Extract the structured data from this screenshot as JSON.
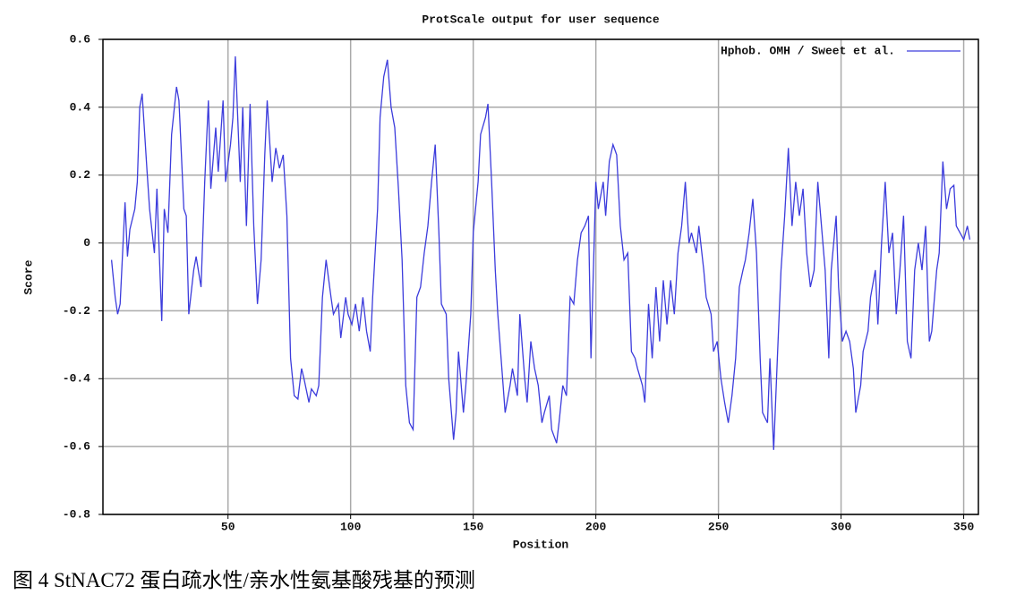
{
  "chart_data": {
    "type": "line",
    "title": "ProtScale output for user sequence",
    "xlabel": "Position",
    "ylabel": "Score",
    "caption": "图 4 StNAC72 蛋白疏水性/亲水性氨基酸残基的预测",
    "xlim": [
      -1,
      356
    ],
    "ylim": [
      -0.8,
      0.6
    ],
    "xticks": [
      50,
      100,
      150,
      200,
      250,
      300,
      350
    ],
    "yticks": [
      -0.8,
      -0.6,
      -0.4,
      -0.2,
      0,
      0.2,
      0.4,
      0.6
    ],
    "grid": true,
    "legend": "upper right",
    "x": [
      2.5,
      4,
      5,
      6,
      8,
      9,
      10,
      12,
      13,
      14,
      15,
      17,
      18,
      20,
      21,
      23,
      24,
      25.5,
      27,
      29,
      30,
      32,
      33,
      34,
      36,
      37,
      39,
      40.5,
      42,
      43,
      45,
      46,
      48,
      49,
      51,
      52,
      53,
      55,
      56,
      57.5,
      59,
      60.5,
      62,
      63.5,
      65,
      66,
      68,
      69.5,
      71,
      72.5,
      74,
      75.5,
      77,
      78.5,
      80,
      81,
      83,
      84,
      86,
      87,
      88.5,
      90,
      92,
      93,
      95,
      96,
      98,
      99,
      100.5,
      102,
      103.5,
      105,
      106.5,
      108,
      109,
      111,
      112,
      113.5,
      115,
      116.5,
      118,
      119.5,
      121,
      122.5,
      124,
      125.5,
      127,
      128.5,
      130,
      131.5,
      133,
      134.5,
      136,
      137,
      139,
      140,
      142,
      143,
      144,
      146,
      147,
      149,
      150,
      152,
      153,
      155,
      156,
      157.5,
      159,
      160,
      162,
      163,
      165,
      166,
      168,
      169,
      171,
      172,
      173.5,
      175,
      176.5,
      178,
      179,
      181,
      182,
      184,
      185,
      186.5,
      188,
      189.5,
      191,
      192.5,
      194,
      195.5,
      197,
      198,
      200,
      201,
      203,
      204,
      205.5,
      207,
      208.5,
      210,
      211.5,
      213,
      214.5,
      216,
      217,
      219,
      220,
      221.5,
      223,
      224.5,
      226,
      227.5,
      229,
      230.5,
      232,
      233.5,
      235,
      236.5,
      238,
      239,
      241,
      242,
      244,
      245,
      247,
      248,
      249.5,
      251,
      252.5,
      254,
      255.5,
      257,
      258.5,
      260,
      261,
      262.5,
      264,
      265.5,
      267,
      268,
      270,
      271,
      272.5,
      274,
      275.5,
      277,
      278.5,
      280,
      281.5,
      283,
      284.5,
      286,
      287.5,
      289,
      290.5,
      292,
      293.5,
      295,
      296,
      298,
      299,
      300.5,
      302,
      303.5,
      305,
      306,
      308,
      309,
      311,
      312,
      314,
      315,
      316.5,
      318,
      319.5,
      321,
      322.5,
      324,
      325.5,
      327,
      328.5,
      330,
      331.5,
      333,
      334.5,
      336,
      337,
      339,
      340,
      341.5,
      343,
      344.5,
      346,
      347,
      348.5,
      350,
      351.5,
      352.5
    ],
    "series": [
      {
        "name": "Hphob. OMH / Sweet et al.",
        "color": "#3c3cdc",
        "values": [
          -0.05,
          -0.16,
          -0.21,
          -0.18,
          0.12,
          -0.04,
          0.04,
          0.1,
          0.18,
          0.4,
          0.44,
          0.21,
          0.1,
          -0.03,
          0.16,
          -0.23,
          0.1,
          0.03,
          0.32,
          0.46,
          0.42,
          0.1,
          0.08,
          -0.21,
          -0.08,
          -0.04,
          -0.13,
          0.18,
          0.42,
          0.16,
          0.34,
          0.21,
          0.42,
          0.18,
          0.29,
          0.37,
          0.55,
          0.18,
          0.4,
          0.05,
          0.41,
          0.05,
          -0.18,
          -0.05,
          0.26,
          0.42,
          0.18,
          0.28,
          0.22,
          0.26,
          0.08,
          -0.34,
          -0.45,
          -0.46,
          -0.37,
          -0.4,
          -0.47,
          -0.43,
          -0.45,
          -0.42,
          -0.16,
          -0.05,
          -0.16,
          -0.21,
          -0.18,
          -0.28,
          -0.16,
          -0.21,
          -0.24,
          -0.18,
          -0.26,
          -0.16,
          -0.26,
          -0.32,
          -0.16,
          0.1,
          0.37,
          0.49,
          0.54,
          0.4,
          0.34,
          0.16,
          -0.05,
          -0.42,
          -0.53,
          -0.55,
          -0.16,
          -0.13,
          -0.03,
          0.05,
          0.18,
          0.29,
          0.03,
          -0.18,
          -0.21,
          -0.4,
          -0.58,
          -0.5,
          -0.32,
          -0.5,
          -0.42,
          -0.21,
          0.03,
          0.18,
          0.32,
          0.37,
          0.41,
          0.18,
          -0.08,
          -0.21,
          -0.4,
          -0.5,
          -0.42,
          -0.37,
          -0.45,
          -0.21,
          -0.4,
          -0.47,
          -0.29,
          -0.37,
          -0.42,
          -0.53,
          -0.5,
          -0.45,
          -0.55,
          -0.59,
          -0.53,
          -0.42,
          -0.45,
          -0.16,
          -0.18,
          -0.05,
          0.03,
          0.05,
          0.08,
          -0.34,
          0.18,
          0.1,
          0.18,
          0.08,
          0.24,
          0.29,
          0.26,
          0.05,
          -0.05,
          -0.03,
          -0.32,
          -0.34,
          -0.37,
          -0.42,
          -0.47,
          -0.18,
          -0.34,
          -0.13,
          -0.29,
          -0.11,
          -0.24,
          -0.11,
          -0.21,
          -0.03,
          0.05,
          0.18,
          0,
          0.03,
          -0.03,
          0.05,
          -0.08,
          -0.16,
          -0.21,
          -0.32,
          -0.29,
          -0.4,
          -0.47,
          -0.53,
          -0.45,
          -0.34,
          -0.13,
          -0.08,
          -0.05,
          0.03,
          0.13,
          -0.03,
          -0.34,
          -0.5,
          -0.53,
          -0.34,
          -0.61,
          -0.34,
          -0.08,
          0.08,
          0.28,
          0.05,
          0.18,
          0.08,
          0.16,
          -0.03,
          -0.13,
          -0.08,
          0.18,
          0.05,
          -0.08,
          -0.34,
          -0.08,
          0.08,
          -0.13,
          -0.29,
          -0.26,
          -0.29,
          -0.37,
          -0.5,
          -0.42,
          -0.32,
          -0.26,
          -0.16,
          -0.08,
          -0.24,
          0,
          0.18,
          -0.03,
          0.03,
          -0.21,
          -0.08,
          0.08,
          -0.29,
          -0.34,
          -0.08,
          0,
          -0.08,
          0.05,
          -0.29,
          -0.26,
          -0.08,
          -0.03,
          0.24,
          0.1,
          0.16,
          0.17,
          0.05,
          0.03,
          0.01,
          0.05,
          0.01
        ]
      }
    ]
  }
}
